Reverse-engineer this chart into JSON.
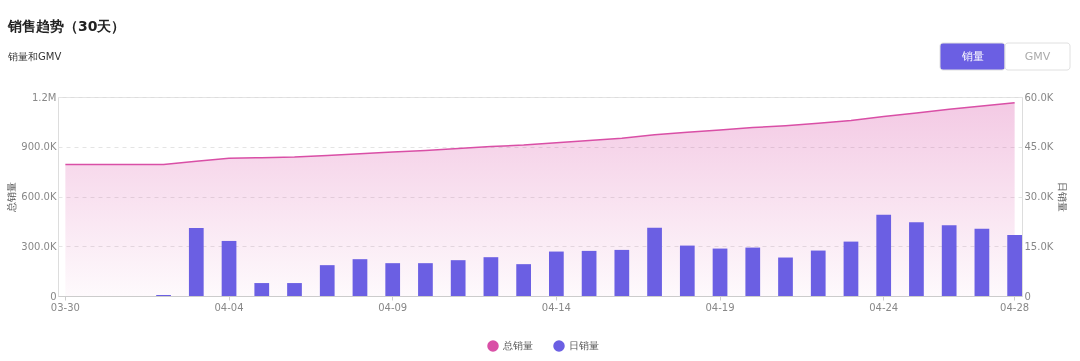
{
  "chart_data": {
    "type": "bar",
    "title": "销售趋势（30天）",
    "subtitle": "销量和GMV",
    "ylabel": "总销量",
    "y2label": "日销量",
    "annotations": [
      "销量",
      "GMV"
    ],
    "categories": [
      "03-30",
      null,
      null,
      null,
      null,
      "04-04",
      null,
      null,
      null,
      null,
      "04-09",
      null,
      null,
      null,
      null,
      "04-14",
      null,
      null,
      null,
      null,
      "04-19",
      null,
      null,
      null,
      null,
      "04-24",
      null,
      null,
      null,
      "04-28"
    ],
    "series": [
      {
        "name": "总销量",
        "type": "area",
        "color": "#d94fa6",
        "values": [
          793000,
          793000,
          793000,
          793000,
          813000,
          830000,
          834000,
          838000,
          847000,
          858000,
          868000,
          878000,
          889000,
          901000,
          910000,
          924000,
          937000,
          951000,
          972000,
          987000,
          1001000,
          1016000,
          1027000,
          1041000,
          1058000,
          1082000,
          1104000,
          1126000,
          1146000,
          1165000
        ]
      },
      {
        "name": "日销量",
        "axis": "y2",
        "color": "#6b5fe3",
        "values": [
          0,
          0,
          0,
          300,
          20500,
          16600,
          3900,
          3900,
          9300,
          11100,
          9900,
          9900,
          10800,
          11700,
          9600,
          13400,
          13600,
          13900,
          20600,
          15200,
          14300,
          14600,
          11600,
          13700,
          16400,
          24500,
          22200,
          21300,
          20300,
          18400
        ]
      }
    ],
    "ylim": [
      0,
      1200000
    ],
    "yticks": [
      0,
      {
        "value": 300000,
        "label": "300.0K"
      },
      {
        "value": 600000,
        "label": "600.0K"
      },
      {
        "value": 900000,
        "label": "900.0K"
      },
      {
        "value": 1200000,
        "label": "1.2M"
      }
    ],
    "y2lim": [
      0,
      60000
    ],
    "y2ticks": [
      0,
      {
        "value": 15000,
        "label": "15.0K"
      },
      {
        "value": 30000,
        "label": "30.0K"
      },
      {
        "value": 45000,
        "label": "45.0K"
      },
      {
        "value": 60000,
        "label": "60.0K"
      }
    ],
    "grid": "y",
    "legend": "bottom"
  }
}
